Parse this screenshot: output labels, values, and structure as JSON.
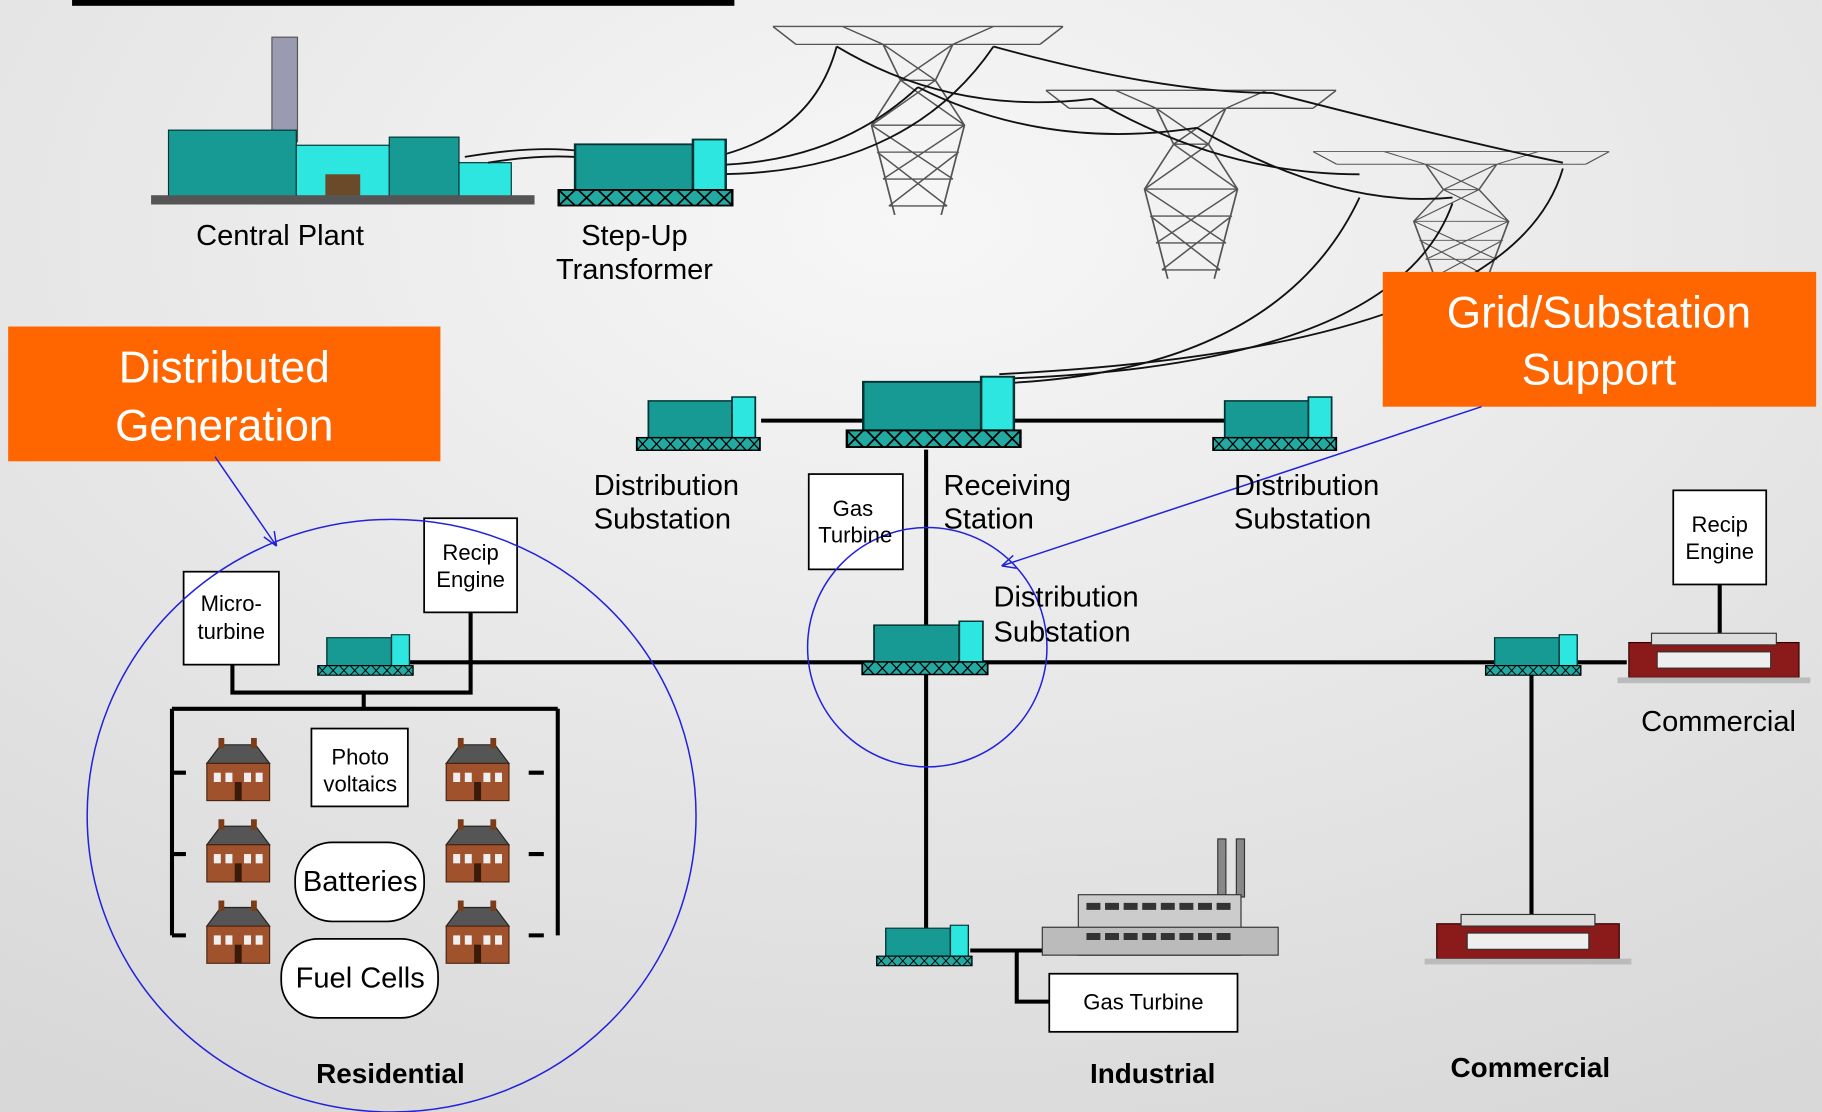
{
  "labels": {
    "central_plant": [
      "Central Plant"
    ],
    "step_up_transformer": [
      "Step-Up",
      "Transformer"
    ],
    "distributed_generation": [
      "Distributed",
      "Generation"
    ],
    "grid_substation_support": [
      "Grid/Substation",
      "Support"
    ],
    "distribution_substation_left": [
      "Distribution",
      "Substation"
    ],
    "gas_turbine_top": [
      "Gas",
      "Turbine"
    ],
    "receiving_station": [
      "Receiving",
      "Station"
    ],
    "distribution_substation_right": [
      "Distribution",
      "Substation"
    ],
    "distribution_substation_center": [
      "Distribution",
      "Substation"
    ],
    "recip_engine_right": [
      "Recip",
      "Engine"
    ],
    "commercial_top": [
      "Commercial"
    ],
    "micro_turbine": [
      "Micro-",
      "turbine"
    ],
    "recip_engine_left": [
      "Recip",
      "Engine"
    ],
    "photo_voltaics": [
      "Photo",
      "voltaics"
    ],
    "batteries": [
      "Batteries"
    ],
    "fuel_cells": [
      "Fuel Cells"
    ],
    "residential": [
      "Residential"
    ],
    "gas_turbine_industrial": [
      "Gas Turbine"
    ],
    "industrial": [
      "Industrial"
    ],
    "commercial_bottom": [
      "Commercial"
    ]
  }
}
